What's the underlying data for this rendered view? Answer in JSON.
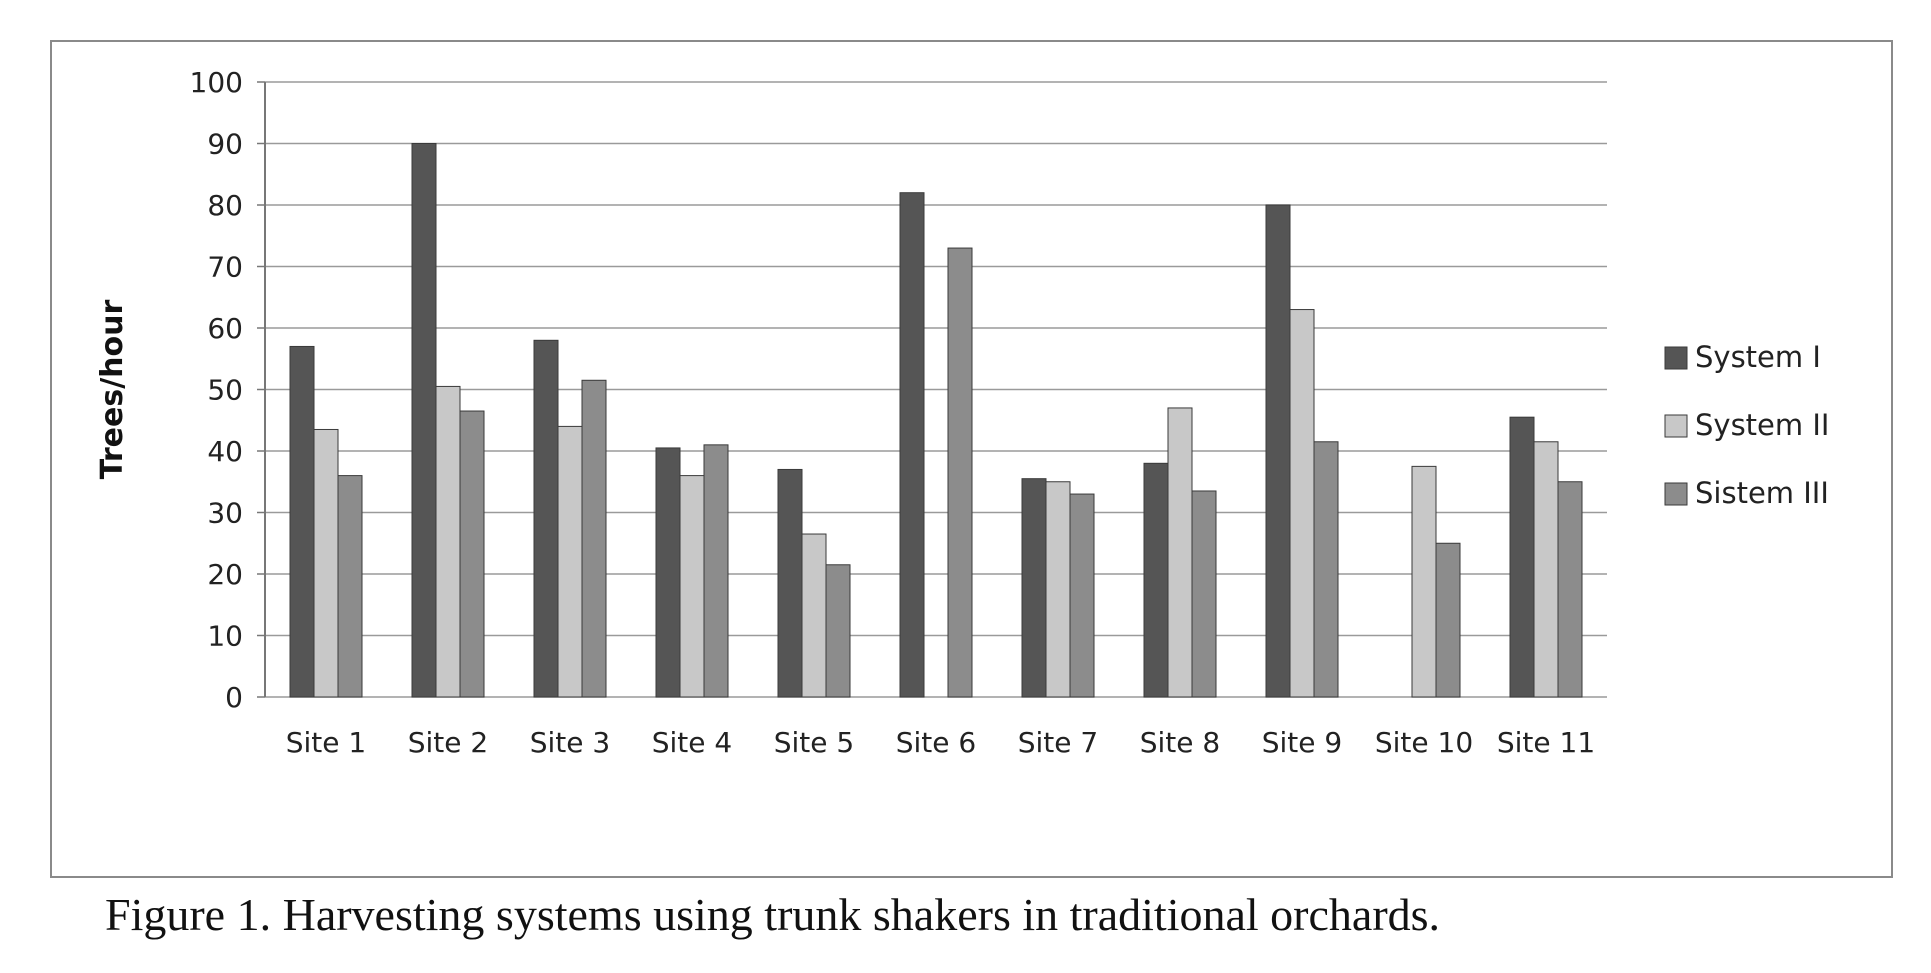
{
  "caption": "Figure 1. Harvesting systems using trunk shakers in traditional orchards.",
  "chart_data": {
    "type": "bar",
    "title": "",
    "xlabel": "",
    "ylabel": "Trees/hour",
    "ylim": [
      0,
      100
    ],
    "yticks": [
      "0",
      "10",
      "20",
      "30",
      "40",
      "50",
      "60",
      "70",
      "80",
      "90",
      "100"
    ],
    "grid": true,
    "legend_position": "right",
    "categories": [
      "Site 1",
      "Site 2",
      "Site 3",
      "Site 4",
      "Site 5",
      "Site 6",
      "Site 7",
      "Site 8",
      "Site 9",
      "Site 10",
      "Site 11"
    ],
    "series": [
      {
        "name": "System I",
        "color": "#555555",
        "values": [
          57,
          90,
          58,
          40.5,
          37,
          82,
          35.5,
          38,
          80,
          null,
          45.5
        ]
      },
      {
        "name": "System II",
        "color": "#c8c8c8",
        "values": [
          43.5,
          50.5,
          44,
          36,
          26.5,
          null,
          35,
          47,
          63,
          37.5,
          41.5
        ]
      },
      {
        "name": "Sistem III",
        "color": "#8c8c8c",
        "values": [
          36,
          46.5,
          51.5,
          41,
          21.5,
          73,
          33,
          33.5,
          41.5,
          25,
          35
        ]
      }
    ]
  }
}
